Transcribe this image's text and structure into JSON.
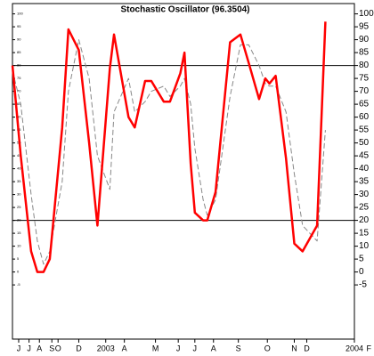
{
  "chart_data": {
    "type": "line",
    "title": "Stochastic Oscillator (96.3504)",
    "x": [
      -4.5,
      -4.1,
      -3.6,
      -3.3,
      -3.0,
      -2.7,
      -2.1,
      -1.8,
      -1.3,
      -0.8,
      -0.4,
      0.2,
      0.4,
      1.1,
      1.4,
      1.9,
      2.2,
      2.8,
      3.1,
      3.6,
      3.8,
      4.1,
      4.3,
      4.7,
      4.9,
      5.3,
      6.0,
      6.5,
      6.9,
      7.4,
      7.7,
      7.9,
      8.2,
      8.7,
      9.1,
      9.5,
      10.2,
      10.6
    ],
    "series": [
      {
        "color": "#ff0000",
        "values": [
          80,
          45,
          8,
          0,
          0,
          5,
          56,
          94,
          86,
          50,
          18,
          79,
          92,
          60,
          56,
          74,
          74,
          66,
          66,
          77,
          85,
          42,
          23,
          20,
          20,
          31,
          89,
          92,
          81,
          67,
          75,
          73,
          76,
          44,
          11,
          8,
          18,
          97
        ]
      },
      {
        "color": "#888888",
        "values": [
          78,
          65,
          30,
          12,
          3,
          8,
          35,
          70,
          90,
          75,
          45,
          32,
          62,
          75,
          62,
          66,
          70,
          72,
          68,
          72,
          75,
          65,
          48,
          28,
          22,
          28,
          68,
          88,
          88,
          80,
          73,
          72,
          72,
          62,
          38,
          18,
          12,
          55
        ]
      }
    ],
    "reference_lines": [
      80,
      20
    ],
    "xlim": [
      -4.5,
      12.0
    ],
    "xticks": [
      {
        "value": -4.2,
        "label": "J"
      },
      {
        "value": -3.7,
        "label": "J"
      },
      {
        "value": -3.2,
        "label": "A"
      },
      {
        "value": -2.6,
        "label": "S"
      },
      {
        "value": -2.3,
        "label": "O"
      },
      {
        "value": -1.3,
        "label": "D"
      },
      {
        "value": 0,
        "label": "2003"
      },
      {
        "value": 0.9,
        "label": "A"
      },
      {
        "value": 2.4,
        "label": "M"
      },
      {
        "value": 3.5,
        "label": "J"
      },
      {
        "value": 4.3,
        "label": "J"
      },
      {
        "value": 5.2,
        "label": "A"
      },
      {
        "value": 6.4,
        "label": "S"
      },
      {
        "value": 7.8,
        "label": "O"
      },
      {
        "value": 9.1,
        "label": "N"
      },
      {
        "value": 9.7,
        "label": "D"
      },
      {
        "value": 12.0,
        "label": "2004"
      },
      {
        "value": 12.7,
        "label": "F"
      }
    ],
    "ylim": [
      -26,
      104
    ],
    "yticks": [
      -5,
      0,
      5,
      10,
      15,
      20,
      25,
      30,
      35,
      40,
      45,
      50,
      55,
      60,
      65,
      70,
      75,
      80,
      85,
      90,
      95,
      100
    ]
  }
}
